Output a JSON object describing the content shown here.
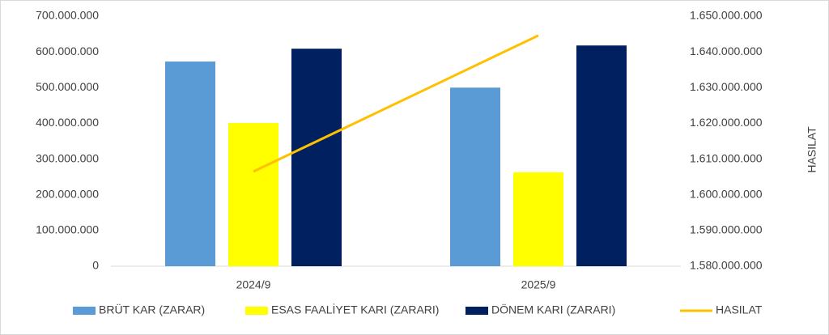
{
  "chart_data": {
    "type": "bar",
    "categories": [
      "2024/9",
      "2025/9"
    ],
    "series": [
      {
        "name": "BRÜT KAR (ZARAR)",
        "color": "#5B9BD5",
        "values": [
          573000000,
          500000000
        ]
      },
      {
        "name": "ESAS FAALİYET KARI (ZARARI)",
        "color": "#FFFF00",
        "values": [
          401000000,
          263000000
        ]
      },
      {
        "name": "DÖNEM KARI (ZARARI)",
        "color": "#002060",
        "values": [
          609000000,
          618000000
        ]
      },
      {
        "name": "HASILAT",
        "color": "#FFC000",
        "type": "line",
        "axis": "y2",
        "values": [
          1606500000,
          1644600000
        ]
      }
    ],
    "ylim": [
      0,
      700000000
    ],
    "yticks": [
      0,
      {
        "value": 100000000,
        "label": "100.000.000"
      },
      {
        "value": 200000000,
        "label": "200.000.000"
      },
      {
        "value": 300000000,
        "label": "300.000.000"
      },
      {
        "value": 400000000,
        "label": "400.000.000"
      },
      {
        "value": 500000000,
        "label": "500.000.000"
      },
      {
        "value": 600000000,
        "label": "600.000.000"
      },
      {
        "value": 700000000,
        "label": "700.000.000"
      }
    ],
    "y2label": "HASILAT",
    "y2lim": [
      1580000000,
      1650000000
    ],
    "y2ticks": [
      {
        "value": 1580000000,
        "label": "1.580.000.000"
      },
      {
        "value": 1590000000,
        "label": "1.590.000.000"
      },
      {
        "value": 1600000000,
        "label": "1.600.000.000"
      },
      {
        "value": 1610000000,
        "label": "1.610.000.000"
      },
      {
        "value": 1620000000,
        "label": "1.620.000.000"
      },
      {
        "value": 1630000000,
        "label": "1.630.000.000"
      },
      {
        "value": 1640000000,
        "label": "1.640.000.000"
      },
      {
        "value": 1650000000,
        "label": "1.650.000.000"
      }
    ],
    "grid": false,
    "legend": "bottom"
  }
}
